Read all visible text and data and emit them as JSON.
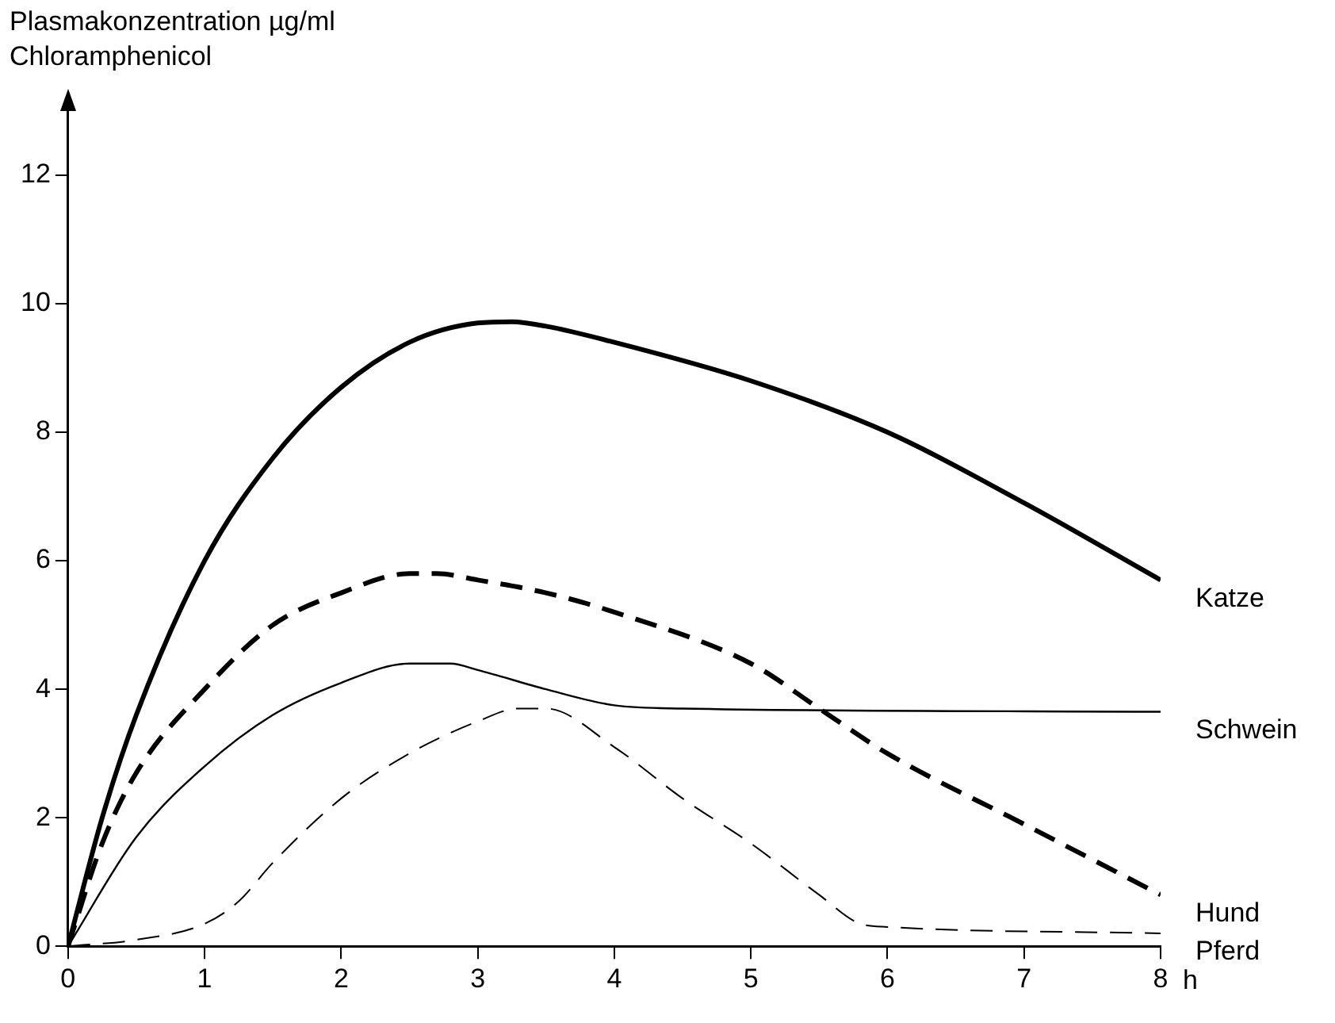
{
  "chart_data": {
    "type": "line",
    "ylabel": "Plasmakonzentration µg/ml\nChloramphenicol",
    "xlabel": "h",
    "xlim": [
      0,
      8
    ],
    "xticks": [
      0,
      1,
      2,
      3,
      4,
      5,
      6,
      7,
      8
    ],
    "ylim": [
      0,
      13
    ],
    "yticks": [
      0,
      2,
      4,
      6,
      8,
      10,
      12
    ],
    "grid": false,
    "legend": false,
    "marker": "none",
    "series": [
      {
        "name": "Katze",
        "color": "#000000",
        "line_style": "solid",
        "x": [
          0,
          0.25,
          0.5,
          1,
          1.5,
          2,
          2.5,
          3,
          3.25,
          3.5,
          4,
          5,
          6,
          7,
          8
        ],
        "values": [
          0,
          2.0,
          3.6,
          6.0,
          7.6,
          8.7,
          9.4,
          9.7,
          9.72,
          9.65,
          9.4,
          8.8,
          8.0,
          6.9,
          5.7
        ]
      },
      {
        "name": "Schwein",
        "color": "#000000",
        "line_style": "solid",
        "x": [
          0,
          0.5,
          1,
          1.5,
          2,
          2.5,
          2.8,
          3,
          3.5,
          4,
          4.5,
          8
        ],
        "values": [
          0,
          1.7,
          2.8,
          3.6,
          4.1,
          4.4,
          4.4,
          4.3,
          4.0,
          3.75,
          3.7,
          3.65
        ]
      },
      {
        "name": "Hund",
        "color": "#000000",
        "line_style": "dashed",
        "x": [
          0,
          0.25,
          0.5,
          1,
          1.5,
          2,
          2.5,
          2.7,
          3,
          3.5,
          4,
          5,
          5.5,
          6,
          7,
          8
        ],
        "values": [
          0,
          1.6,
          2.7,
          4.0,
          5.0,
          5.5,
          5.8,
          5.8,
          5.7,
          5.5,
          5.2,
          4.4,
          3.7,
          3.0,
          1.9,
          0.8
        ]
      },
      {
        "name": "Pferd",
        "color": "#000000",
        "line_style": "dashed",
        "x": [
          0,
          0.5,
          1,
          1.25,
          1.5,
          2,
          2.5,
          3,
          3.3,
          3.5,
          4,
          4.5,
          5,
          5.5,
          5.8,
          6,
          8
        ],
        "values": [
          0,
          0.1,
          0.35,
          0.7,
          1.3,
          2.3,
          3.0,
          3.5,
          3.7,
          3.7,
          3.1,
          2.3,
          1.6,
          0.8,
          0.35,
          0.3,
          0.2
        ]
      }
    ]
  }
}
